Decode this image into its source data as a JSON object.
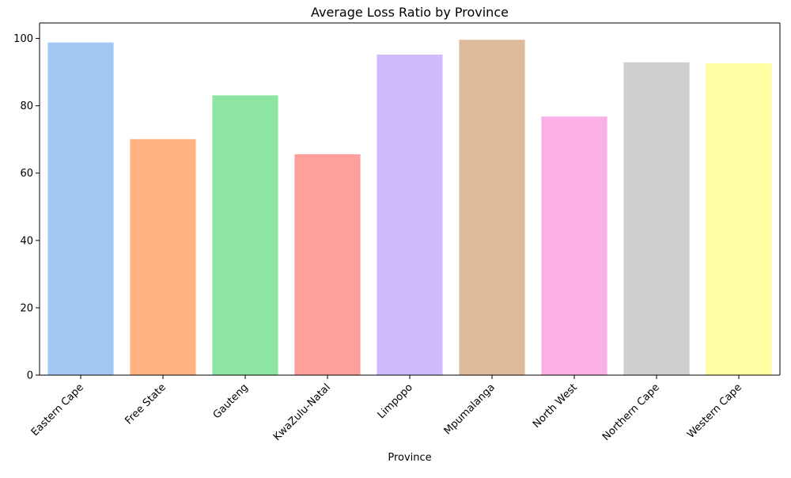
{
  "chart_data": {
    "type": "bar",
    "title": "Average Loss Ratio by Province",
    "xlabel": "Province",
    "ylabel": "",
    "categories": [
      "Eastern Cape",
      "Free State",
      "Gauteng",
      "KwaZulu-Natal",
      "Limpopo",
      "Mpumalanga",
      "North West",
      "Northern Cape",
      "Western Cape"
    ],
    "values": [
      98.8,
      70.1,
      83.1,
      65.6,
      95.2,
      99.6,
      76.8,
      92.9,
      92.6
    ],
    "colors": [
      "#a1c9f4",
      "#ffb482",
      "#8de5a1",
      "#ff9f9b",
      "#d0bbff",
      "#debb9b",
      "#fab0e4",
      "#cfcfcf",
      "#fffea3"
    ],
    "yticks": [
      0,
      20,
      40,
      60,
      80,
      100
    ],
    "ylim": [
      0,
      104.6
    ],
    "grid": false,
    "legend": "none"
  }
}
